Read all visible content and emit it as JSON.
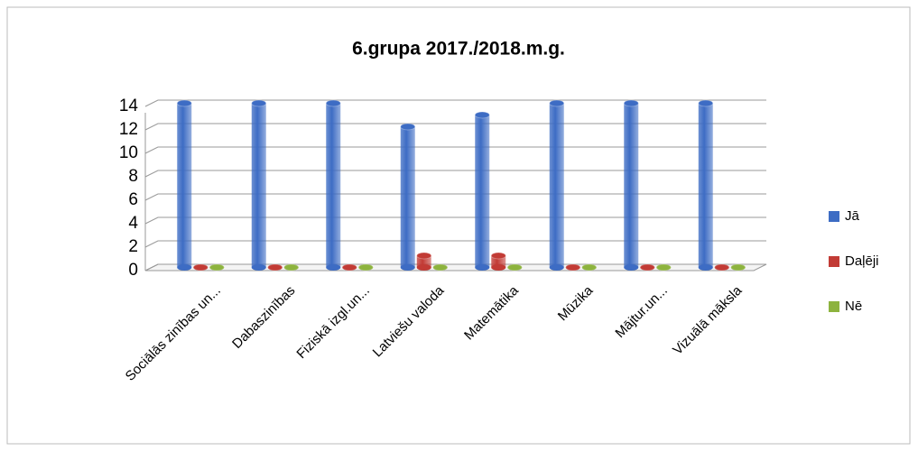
{
  "chart_data": {
    "type": "bar3d",
    "title": "6.grupa 2017./2018.m.g.",
    "categories": [
      "Sociālās zinības un...",
      "Dabaszinības",
      "Fiziskā izgl.un...",
      "Latviešu valoda",
      "Matemātika",
      "Mūzika",
      "Mājtur.un...",
      "Vizuālā māksla"
    ],
    "series": [
      {
        "name": "Jā",
        "color": "#3d6cc4",
        "values": [
          14,
          14,
          14,
          12,
          13,
          14,
          14,
          14
        ]
      },
      {
        "name": "Daļēji",
        "color": "#c23b35",
        "values": [
          0,
          0,
          0,
          1,
          1,
          0,
          0,
          0
        ]
      },
      {
        "name": "Nē",
        "color": "#8db33e",
        "values": [
          0,
          0,
          0,
          0,
          0,
          0,
          0,
          0
        ]
      }
    ],
    "ylim": [
      0,
      14
    ],
    "yticks": [
      0,
      2,
      4,
      6,
      8,
      10,
      12,
      14
    ],
    "grid": true,
    "legend": "right"
  }
}
